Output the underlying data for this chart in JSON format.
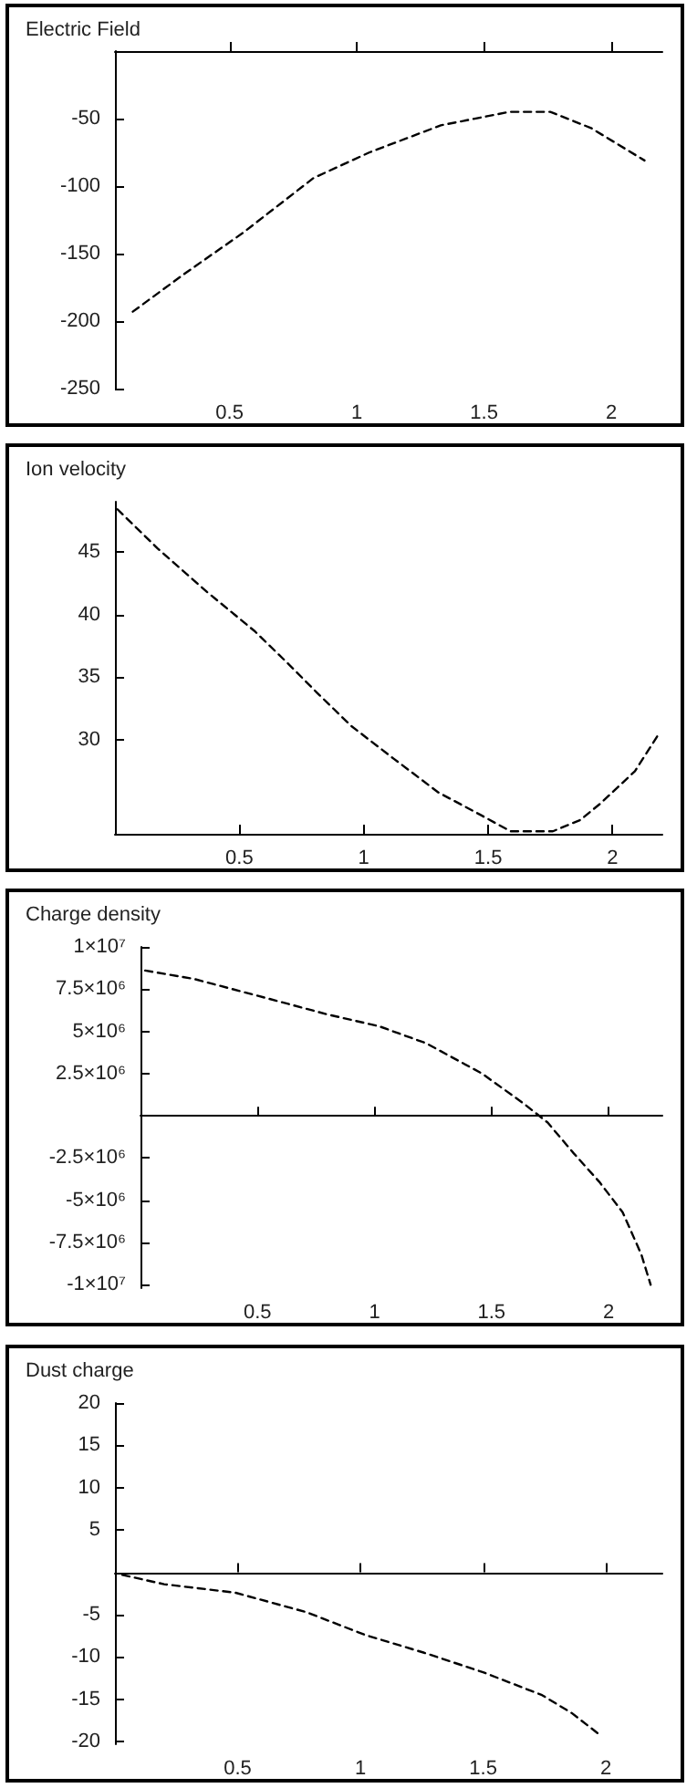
{
  "chart_data": [
    {
      "type": "line",
      "title": "Electric Field",
      "x": [
        0.12,
        0.33,
        0.55,
        0.83,
        1.05,
        1.33,
        1.6,
        1.76,
        1.92,
        2.13
      ],
      "series": [
        {
          "color": "#000000",
          "values": [
            -193,
            -164,
            -135,
            -94,
            -75,
            -55,
            -45,
            -45,
            -57,
            -81
          ]
        }
      ],
      "xlim": [
        0.05,
        2.2
      ],
      "xticks": [
        0.5,
        1,
        1.5,
        2
      ],
      "ylim": [
        -250,
        0
      ],
      "yticks": [
        -250,
        -200,
        -150,
        -100,
        -50
      ],
      "grid": false,
      "marker": "none",
      "line_style": "dashed"
    },
    {
      "type": "line",
      "title": "Ion velocity",
      "x": [
        0.01,
        0.17,
        0.37,
        0.56,
        0.7,
        0.81,
        0.95,
        1.12,
        1.3,
        1.47,
        1.59,
        1.76,
        1.87,
        1.95,
        2.09,
        2.19
      ],
      "series": [
        {
          "color": "#000000",
          "values": [
            48.4,
            45.3,
            41.8,
            38.7,
            36.0,
            33.8,
            31.1,
            28.5,
            25.8,
            24.0,
            22.7,
            22.7,
            23.6,
            24.9,
            27.5,
            30.6
          ]
        }
      ],
      "xlim": [
        0,
        2.2
      ],
      "xticks": [
        0.5,
        1,
        1.5,
        2
      ],
      "ylim": [
        22.5,
        49
      ],
      "yticks": [
        30,
        35,
        40,
        45
      ],
      "grid": false,
      "marker": "none",
      "line_style": "dashed"
    },
    {
      "type": "line",
      "title": "Charge density",
      "x": [
        0.02,
        0.23,
        0.53,
        0.8,
        1.02,
        1.22,
        1.46,
        1.64,
        1.74,
        1.85,
        1.96,
        2.06,
        2.14,
        2.18
      ],
      "series": [
        {
          "color": "#000000",
          "values": [
            8600000,
            8100000,
            7000000,
            6000000,
            5300000,
            4300000,
            2500000,
            700000,
            -400000,
            -2200000,
            -3900000,
            -5700000,
            -8200000,
            -10000000
          ]
        }
      ],
      "xlim": [
        0,
        2.23
      ],
      "xticks": [
        0.5,
        1,
        1.5,
        2
      ],
      "ylim": [
        -10200000,
        10000000
      ],
      "yticks": [
        {
          "value": -10000000,
          "label": "-1×10⁷"
        },
        {
          "value": -7500000,
          "label": "-7.5×10⁶"
        },
        {
          "value": -5000000,
          "label": "-5×10⁶"
        },
        {
          "value": -2500000,
          "label": "-2.5×10⁶"
        },
        {
          "value": 2500000,
          "label": "2.5×10⁶"
        },
        {
          "value": 5000000,
          "label": "5×10⁶"
        },
        {
          "value": 7500000,
          "label": "7.5×10⁶"
        },
        {
          "value": 10000000,
          "label": "1×10⁷"
        }
      ],
      "grid": false,
      "marker": "none",
      "line_style": "dashed"
    },
    {
      "type": "line",
      "title": "Dust charge",
      "x": [
        0.03,
        0.2,
        0.49,
        0.78,
        1.02,
        1.26,
        1.5,
        1.74,
        1.86,
        1.98
      ],
      "series": [
        {
          "color": "#000000",
          "values": [
            -0.3,
            -1.4,
            -2.4,
            -4.7,
            -7.4,
            -9.5,
            -11.8,
            -14.5,
            -16.6,
            -19.3
          ]
        }
      ],
      "xlim": [
        0,
        2.23
      ],
      "xticks": [
        0.5,
        1,
        1.5,
        2
      ],
      "ylim": [
        -20.3,
        20
      ],
      "yticks": [
        -20,
        -15,
        -10,
        -5,
        5,
        10,
        15,
        20
      ],
      "grid": false,
      "marker": "none",
      "line_style": "dashed"
    }
  ]
}
